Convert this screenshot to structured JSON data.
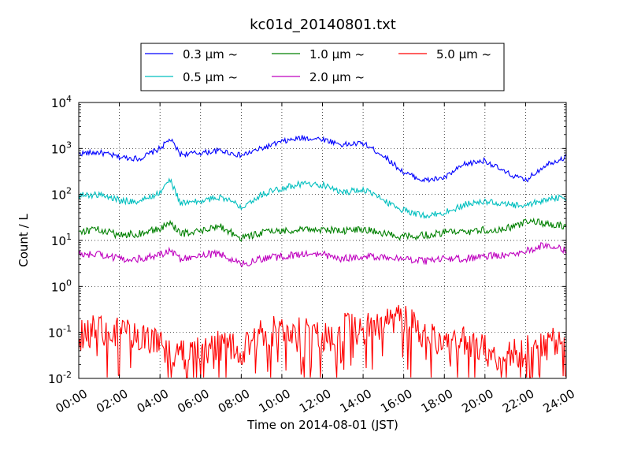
{
  "chart_data": {
    "type": "line",
    "title": "kc01d_20140801.txt",
    "xlabel": "Time on 2014-08-01 (JST)",
    "ylabel": "Count / L",
    "yscale": "log",
    "xlim": [
      "00:00",
      "24:00"
    ],
    "ylim": [
      0.01,
      10000
    ],
    "grid": true,
    "legend_position": "top-center",
    "x_tick_labels": [
      "00:00",
      "02:00",
      "04:00",
      "06:00",
      "08:00",
      "10:00",
      "12:00",
      "14:00",
      "16:00",
      "18:00",
      "20:00",
      "22:00",
      "24:00"
    ],
    "y_tick_labels": [
      {
        "base": "10",
        "exp": "-2"
      },
      {
        "base": "10",
        "exp": "-1"
      },
      {
        "base": "10",
        "exp": "0"
      },
      {
        "base": "10",
        "exp": "1"
      },
      {
        "base": "10",
        "exp": "2"
      },
      {
        "base": "10",
        "exp": "3"
      },
      {
        "base": "10",
        "exp": "4"
      }
    ],
    "x_hours": [
      0,
      1,
      2,
      3,
      4,
      4.5,
      5,
      6,
      7,
      8,
      9,
      10,
      11,
      12,
      13,
      14,
      15,
      16,
      17,
      18,
      19,
      20,
      21,
      22,
      23,
      24
    ],
    "series": [
      {
        "name": "0.3 µm ~",
        "color": "#0000ff",
        "values": [
          780,
          820,
          650,
          600,
          1000,
          1600,
          750,
          800,
          900,
          700,
          1000,
          1400,
          1700,
          1600,
          1200,
          1300,
          700,
          300,
          200,
          230,
          450,
          550,
          300,
          200,
          450,
          650
        ]
      },
      {
        "name": "0.5 µm ~",
        "color": "#00bfbf",
        "values": [
          95,
          100,
          75,
          70,
          110,
          210,
          65,
          70,
          90,
          55,
          100,
          140,
          170,
          160,
          110,
          130,
          75,
          45,
          35,
          40,
          60,
          70,
          60,
          55,
          80,
          85
        ]
      },
      {
        "name": "1.0 µm ~",
        "color": "#008000",
        "values": [
          16,
          17,
          13,
          14,
          18,
          24,
          14,
          16,
          20,
          11,
          15,
          16,
          18,
          17,
          16,
          18,
          14,
          12,
          13,
          15,
          15,
          17,
          18,
          25,
          24,
          20
        ]
      },
      {
        "name": "2.0 µm ~",
        "color": "#bf00bf",
        "values": [
          5,
          5,
          4,
          4,
          5,
          6,
          4,
          5,
          5,
          3,
          4,
          4.5,
          5,
          5,
          4,
          4.5,
          4.5,
          4,
          3.5,
          4,
          4,
          4.5,
          5,
          6,
          8,
          6
        ]
      },
      {
        "name": "5.0 µm ~",
        "color": "#ff0000",
        "values": [
          0.08,
          0.12,
          0.1,
          0.07,
          0.05,
          0.04,
          0.03,
          0.04,
          0.05,
          0.04,
          0.1,
          0.12,
          0.12,
          0.07,
          0.12,
          0.12,
          0.15,
          0.2,
          0.1,
          0.05,
          0.06,
          0.04,
          0.03,
          0.04,
          0.06,
          0.08
        ]
      }
    ]
  }
}
